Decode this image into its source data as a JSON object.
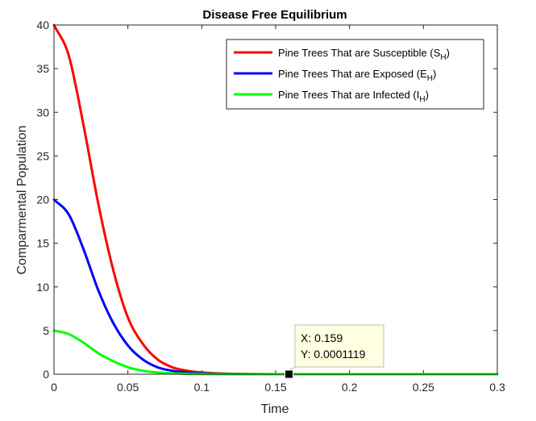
{
  "chart_data": {
    "type": "line",
    "title": "Disease Free Equilibrium",
    "xlabel": "Time",
    "ylabel": "Comparmental Population",
    "xlim": [
      0,
      0.3
    ],
    "ylim": [
      0,
      40
    ],
    "xticks": [
      0,
      0.05,
      0.1,
      0.15,
      0.2,
      0.25,
      0.3
    ],
    "xtick_labels": [
      "0",
      "0.05",
      "0.1",
      "0.15",
      "0.2",
      "0.25",
      "0.3"
    ],
    "yticks": [
      0,
      5,
      10,
      15,
      20,
      25,
      30,
      35,
      40
    ],
    "ytick_labels": [
      "0",
      "5",
      "10",
      "15",
      "20",
      "25",
      "30",
      "35",
      "40"
    ],
    "grid": false,
    "legend_position": "top-right",
    "series": [
      {
        "name": "Pine Trees That are Susceptible (S",
        "name_subscript": "H",
        "name_suffix": ")",
        "color": "#ff0000",
        "x": [
          0,
          0.01,
          0.02,
          0.03,
          0.04,
          0.05,
          0.06,
          0.07,
          0.08,
          0.09,
          0.1,
          0.11,
          0.12,
          0.13,
          0.15,
          0.2,
          0.25,
          0.3
        ],
        "y": [
          40,
          36.5,
          28.5,
          19.5,
          12,
          6.5,
          3.5,
          1.7,
          0.8,
          0.4,
          0.2,
          0.1,
          0.05,
          0.02,
          0.005,
          0,
          0,
          0
        ]
      },
      {
        "name": "Pine Trees That are Exposed (E",
        "name_subscript": "H",
        "name_suffix": ")",
        "color": "#0000ff",
        "x": [
          0,
          0.01,
          0.02,
          0.03,
          0.04,
          0.05,
          0.06,
          0.07,
          0.08,
          0.09,
          0.1,
          0.11,
          0.12,
          0.13,
          0.15,
          0.2,
          0.25,
          0.3
        ],
        "y": [
          20,
          18.3,
          14.3,
          9.6,
          5.9,
          3.3,
          1.7,
          0.8,
          0.4,
          0.2,
          0.1,
          0.05,
          0.02,
          0.01,
          0,
          0,
          0,
          0
        ]
      },
      {
        "name": "Pine Trees That are Infected (I",
        "name_subscript": "H",
        "name_suffix": ")",
        "color": "#00ff00",
        "x": [
          0,
          0.01,
          0.02,
          0.03,
          0.04,
          0.05,
          0.06,
          0.07,
          0.08,
          0.09,
          0.1,
          0.11,
          0.12,
          0.13,
          0.15,
          0.2,
          0.25,
          0.3
        ],
        "y": [
          5,
          4.6,
          3.6,
          2.4,
          1.5,
          0.8,
          0.4,
          0.2,
          0.1,
          0.05,
          0.02,
          0.01,
          0.005,
          0,
          0,
          0,
          0,
          0
        ]
      }
    ],
    "datatip": {
      "x": 0.159,
      "y": 0.0001119,
      "x_text": "X: 0.159",
      "y_text": "Y: 0.0001119"
    }
  }
}
